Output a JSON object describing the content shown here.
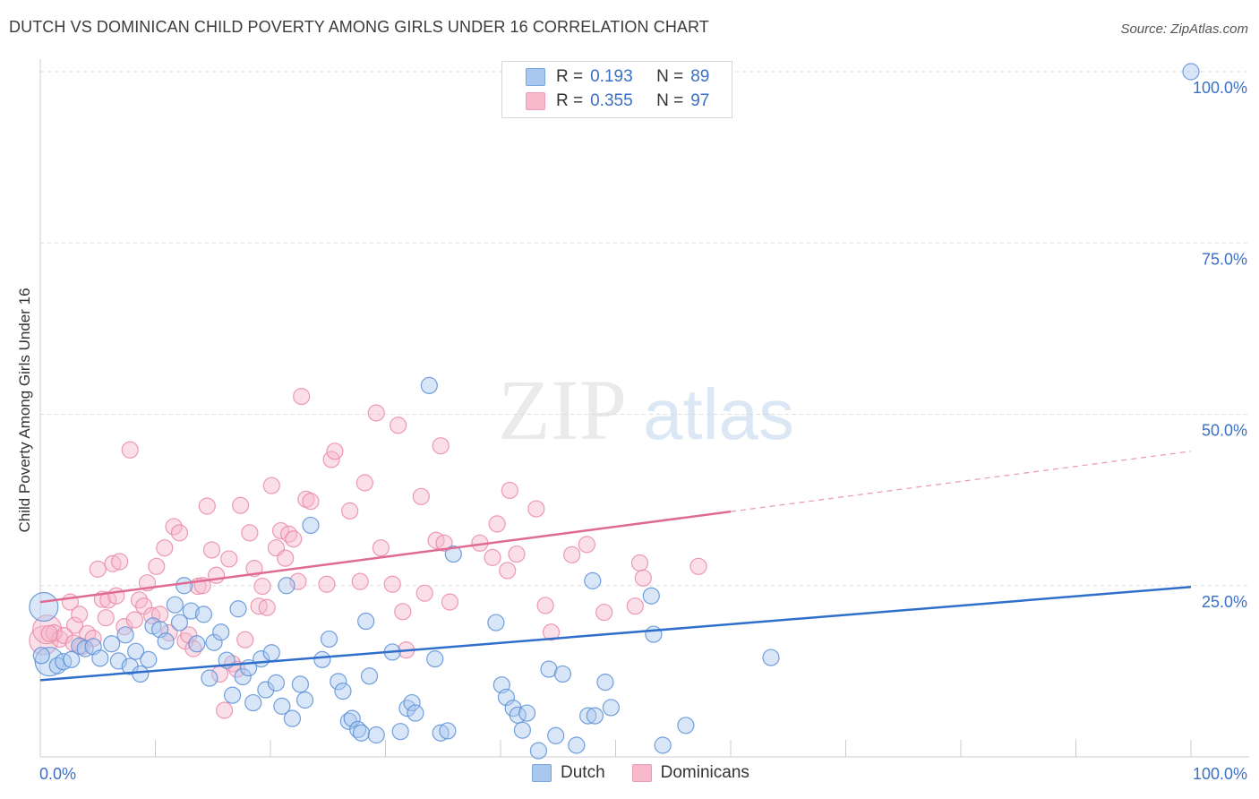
{
  "header": {
    "title": "DUTCH VS DOMINICAN CHILD POVERTY AMONG GIRLS UNDER 16 CORRELATION CHART",
    "source": "Source: ZipAtlas.com"
  },
  "watermark": {
    "zip": "ZIP",
    "atlas": "atlas"
  },
  "legend": {
    "rows": [
      {
        "r_label": "R =",
        "r_value": "0.193",
        "n_label": "N =",
        "n_value": "89",
        "color": "#a9c8f0"
      },
      {
        "r_label": "R =",
        "r_value": "0.355",
        "n_label": "N =",
        "n_value": "97",
        "color": "#f7b9cb"
      }
    ]
  },
  "colors": {
    "dutch_fill": "#a9c8f0",
    "dutch_stroke": "#5b8fd6",
    "dutch_line": "#2f6fcc",
    "dominican_fill": "#f7b9cb",
    "dominican_stroke": "#e98aa6",
    "dominican_line": "#e06b92",
    "axis_text": "#3a6fc4",
    "grid": "#dddddd"
  },
  "chart_data": {
    "type": "scatter",
    "title": "DUTCH VS DOMINICAN CHILD POVERTY AMONG GIRLS UNDER 16 CORRELATION CHART",
    "xlabel": "",
    "ylabel": "Child Poverty Among Girls Under 16",
    "xlim": [
      0,
      100
    ],
    "ylim": [
      0,
      100
    ],
    "x_tick_labels": [
      "0.0%",
      "100.0%"
    ],
    "y_tick_labels": [
      "25.0%",
      "50.0%",
      "75.0%",
      "100.0%"
    ],
    "y_ticks": [
      25,
      50,
      75,
      100
    ],
    "grid": true,
    "legend_placement": "bottom",
    "series": [
      {
        "name": "Dutch",
        "r": 0.193,
        "n": 89,
        "trend": {
          "x": [
            0,
            100
          ],
          "y": [
            11.2,
            24.8
          ]
        },
        "points": [
          [
            0.3,
            21.9
          ],
          [
            0.8,
            13.9
          ],
          [
            1.5,
            13.3
          ],
          [
            2,
            13.9
          ],
          [
            2.7,
            14.2
          ],
          [
            3.4,
            16.2
          ],
          [
            3.9,
            15.8
          ],
          [
            4.6,
            16.1
          ],
          [
            5.2,
            14.4
          ],
          [
            6.2,
            16.5
          ],
          [
            6.8,
            14.0
          ],
          [
            7.4,
            17.8
          ],
          [
            7.8,
            13.2
          ],
          [
            8.3,
            15.4
          ],
          [
            8.7,
            12.1
          ],
          [
            9.4,
            14.2
          ],
          [
            9.8,
            19.1
          ],
          [
            10.4,
            18.6
          ],
          [
            10.9,
            16.9
          ],
          [
            11.7,
            22.2
          ],
          [
            12.1,
            19.6
          ],
          [
            12.5,
            25.0
          ],
          [
            13.1,
            21.3
          ],
          [
            13.6,
            16.5
          ],
          [
            14.2,
            20.8
          ],
          [
            14.7,
            11.5
          ],
          [
            15.1,
            16.7
          ],
          [
            15.7,
            18.2
          ],
          [
            16.2,
            14.1
          ],
          [
            16.7,
            9.0
          ],
          [
            17.2,
            21.6
          ],
          [
            17.6,
            11.7
          ],
          [
            18.1,
            13.0
          ],
          [
            18.5,
            7.9
          ],
          [
            19.2,
            14.3
          ],
          [
            19.6,
            9.8
          ],
          [
            20.1,
            15.2
          ],
          [
            20.5,
            10.8
          ],
          [
            21,
            7.4
          ],
          [
            21.4,
            25.0
          ],
          [
            21.9,
            5.6
          ],
          [
            22.6,
            10.6
          ],
          [
            23,
            8.3
          ],
          [
            23.5,
            33.8
          ],
          [
            24.5,
            14.2
          ],
          [
            25.1,
            17.2
          ],
          [
            25.9,
            11.0
          ],
          [
            26.3,
            9.6
          ],
          [
            26.8,
            5.2
          ],
          [
            27.1,
            5.6
          ],
          [
            27.6,
            4.0
          ],
          [
            27.9,
            3.5
          ],
          [
            28.3,
            19.8
          ],
          [
            28.6,
            11.8
          ],
          [
            29.2,
            3.2
          ],
          [
            30.6,
            15.3
          ],
          [
            31.3,
            3.7
          ],
          [
            31.9,
            7.1
          ],
          [
            32.3,
            7.9
          ],
          [
            32.6,
            6.4
          ],
          [
            33.8,
            54.2
          ],
          [
            34.3,
            14.3
          ],
          [
            34.8,
            3.5
          ],
          [
            35.4,
            3.8
          ],
          [
            35.9,
            29.6
          ],
          [
            39.6,
            19.6
          ],
          [
            40.1,
            10.5
          ],
          [
            40.5,
            8.7
          ],
          [
            41.1,
            7.1
          ],
          [
            41.5,
            6.1
          ],
          [
            41.9,
            3.9
          ],
          [
            42.3,
            6.4
          ],
          [
            43.3,
            0.9
          ],
          [
            44.2,
            12.8
          ],
          [
            44.8,
            3.1
          ],
          [
            45.4,
            12.1
          ],
          [
            46.6,
            1.7
          ],
          [
            47.6,
            6.0
          ],
          [
            48,
            25.7
          ],
          [
            48.2,
            6.0
          ],
          [
            49.1,
            10.9
          ],
          [
            49.6,
            7.2
          ],
          [
            53.1,
            23.5
          ],
          [
            53.3,
            17.9
          ],
          [
            54.1,
            1.7
          ],
          [
            56.1,
            4.6
          ],
          [
            63.5,
            14.5
          ],
          [
            100,
            100
          ],
          [
            0.1,
            14.8
          ]
        ]
      },
      {
        "name": "Dominicans",
        "r": 0.355,
        "n": 97,
        "trend": {
          "x": [
            0,
            60
          ],
          "y": [
            22.6,
            35.8
          ]
        },
        "trend_extension": {
          "x": [
            60,
            100
          ],
          "y": [
            35.8,
            44.6
          ]
        },
        "points": [
          [
            0.3,
            17.0
          ],
          [
            0.6,
            18.6
          ],
          [
            1.2,
            18.1
          ],
          [
            1.7,
            17.2
          ],
          [
            2.1,
            17.7
          ],
          [
            2.6,
            22.6
          ],
          [
            3.0,
            19.2
          ],
          [
            3.4,
            20.8
          ],
          [
            3.6,
            16.1
          ],
          [
            4.1,
            18.0
          ],
          [
            4.6,
            17.3
          ],
          [
            5.0,
            27.4
          ],
          [
            5.4,
            23.0
          ],
          [
            5.7,
            20.3
          ],
          [
            5.9,
            22.9
          ],
          [
            6.3,
            28.2
          ],
          [
            6.6,
            23.5
          ],
          [
            6.9,
            28.5
          ],
          [
            7.3,
            19.0
          ],
          [
            7.8,
            44.8
          ],
          [
            8.2,
            20.0
          ],
          [
            8.6,
            22.9
          ],
          [
            9.0,
            22.0
          ],
          [
            9.3,
            25.4
          ],
          [
            9.7,
            20.6
          ],
          [
            10.1,
            27.8
          ],
          [
            10.4,
            20.8
          ],
          [
            10.8,
            30.5
          ],
          [
            11.2,
            18.1
          ],
          [
            11.6,
            33.6
          ],
          [
            12.1,
            32.7
          ],
          [
            12.6,
            16.9
          ],
          [
            12.9,
            17.8
          ],
          [
            13.3,
            15.8
          ],
          [
            13.7,
            24.9
          ],
          [
            14.1,
            25.0
          ],
          [
            14.5,
            36.6
          ],
          [
            14.9,
            30.2
          ],
          [
            15.3,
            26.5
          ],
          [
            15.6,
            12.1
          ],
          [
            16.0,
            6.8
          ],
          [
            16.4,
            28.9
          ],
          [
            16.7,
            13.6
          ],
          [
            17.1,
            12.8
          ],
          [
            17.4,
            36.7
          ],
          [
            17.8,
            17.1
          ],
          [
            18.2,
            32.7
          ],
          [
            18.6,
            27.5
          ],
          [
            19.0,
            22.0
          ],
          [
            19.3,
            24.9
          ],
          [
            19.7,
            21.8
          ],
          [
            20.1,
            39.6
          ],
          [
            20.5,
            30.5
          ],
          [
            20.9,
            33.0
          ],
          [
            21.3,
            29.0
          ],
          [
            21.6,
            32.5
          ],
          [
            22.0,
            31.8
          ],
          [
            22.4,
            25.6
          ],
          [
            22.7,
            52.6
          ],
          [
            23.1,
            37.6
          ],
          [
            23.5,
            37.3
          ],
          [
            24.9,
            25.2
          ],
          [
            25.3,
            43.4
          ],
          [
            25.6,
            44.6
          ],
          [
            26.9,
            35.9
          ],
          [
            27.8,
            25.6
          ],
          [
            28.2,
            40.0
          ],
          [
            29.2,
            50.2
          ],
          [
            29.6,
            30.5
          ],
          [
            30.6,
            25.2
          ],
          [
            31.1,
            48.4
          ],
          [
            31.5,
            21.2
          ],
          [
            31.8,
            15.6
          ],
          [
            33.1,
            38.0
          ],
          [
            33.4,
            23.9
          ],
          [
            34.4,
            31.6
          ],
          [
            34.8,
            45.4
          ],
          [
            35.1,
            31.2
          ],
          [
            35.6,
            22.6
          ],
          [
            38.2,
            31.2
          ],
          [
            39.3,
            29.1
          ],
          [
            39.7,
            34.0
          ],
          [
            40.6,
            27.2
          ],
          [
            40.8,
            38.9
          ],
          [
            41.4,
            29.6
          ],
          [
            43.1,
            36.2
          ],
          [
            43.9,
            22.1
          ],
          [
            44.4,
            18.2
          ],
          [
            46.2,
            29.5
          ],
          [
            47.5,
            31.0
          ],
          [
            49.0,
            21.1
          ],
          [
            51.7,
            22.0
          ],
          [
            52.1,
            28.3
          ],
          [
            52.4,
            26.1
          ],
          [
            57.2,
            27.8
          ],
          [
            0.8,
            18.0
          ],
          [
            2.9,
            16.6
          ]
        ]
      }
    ]
  }
}
